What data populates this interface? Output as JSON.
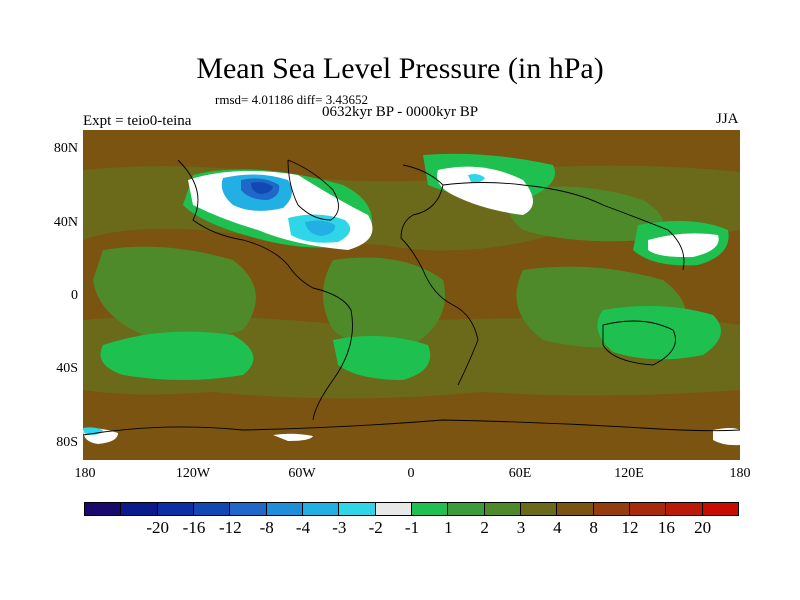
{
  "title": "Mean Sea Level Pressure (in hPa)",
  "stats": "rmsd= 4.01186 diff= 3.43652",
  "period": "0632kyr BP - 0000kyr BP",
  "experiment": "Expt = teio0-teina",
  "season": "JJA",
  "lat_ticks": [
    "80N",
    "40N",
    "0",
    "40S",
    "80S"
  ],
  "lon_ticks": [
    "180",
    "120W",
    "60W",
    "0",
    "60E",
    "120E",
    "180"
  ],
  "colorbar": {
    "colors": [
      "#1a0a6e",
      "#0a1c8c",
      "#0c2fa6",
      "#1248b4",
      "#1f67c8",
      "#1f8ed8",
      "#22b0e4",
      "#2fd6e8",
      "#e8e8e8",
      "#1ec050",
      "#3a9c3a",
      "#4f8a2a",
      "#6a6a1a",
      "#7a5410",
      "#943c0e",
      "#a82a0a",
      "#bc1a08",
      "#c80c04"
    ],
    "labels": [
      "-20",
      "-16",
      "-12",
      "-8",
      "-4",
      "-3",
      "-2",
      "-1",
      "1",
      "2",
      "3",
      "4",
      "8",
      "12",
      "16",
      "20"
    ]
  },
  "palette": {
    "brown": "#7a5410",
    "olive": "#6a6a1a",
    "darkgreen": "#4f8a2a",
    "green": "#3a9c3a",
    "brightgreen": "#1ec050",
    "white": "#ffffff",
    "cyan": "#2fd6e8",
    "lightblue": "#22b0e4",
    "midblue": "#1f67c8",
    "darkblue": "#1248b4",
    "red": "#943c0e"
  }
}
